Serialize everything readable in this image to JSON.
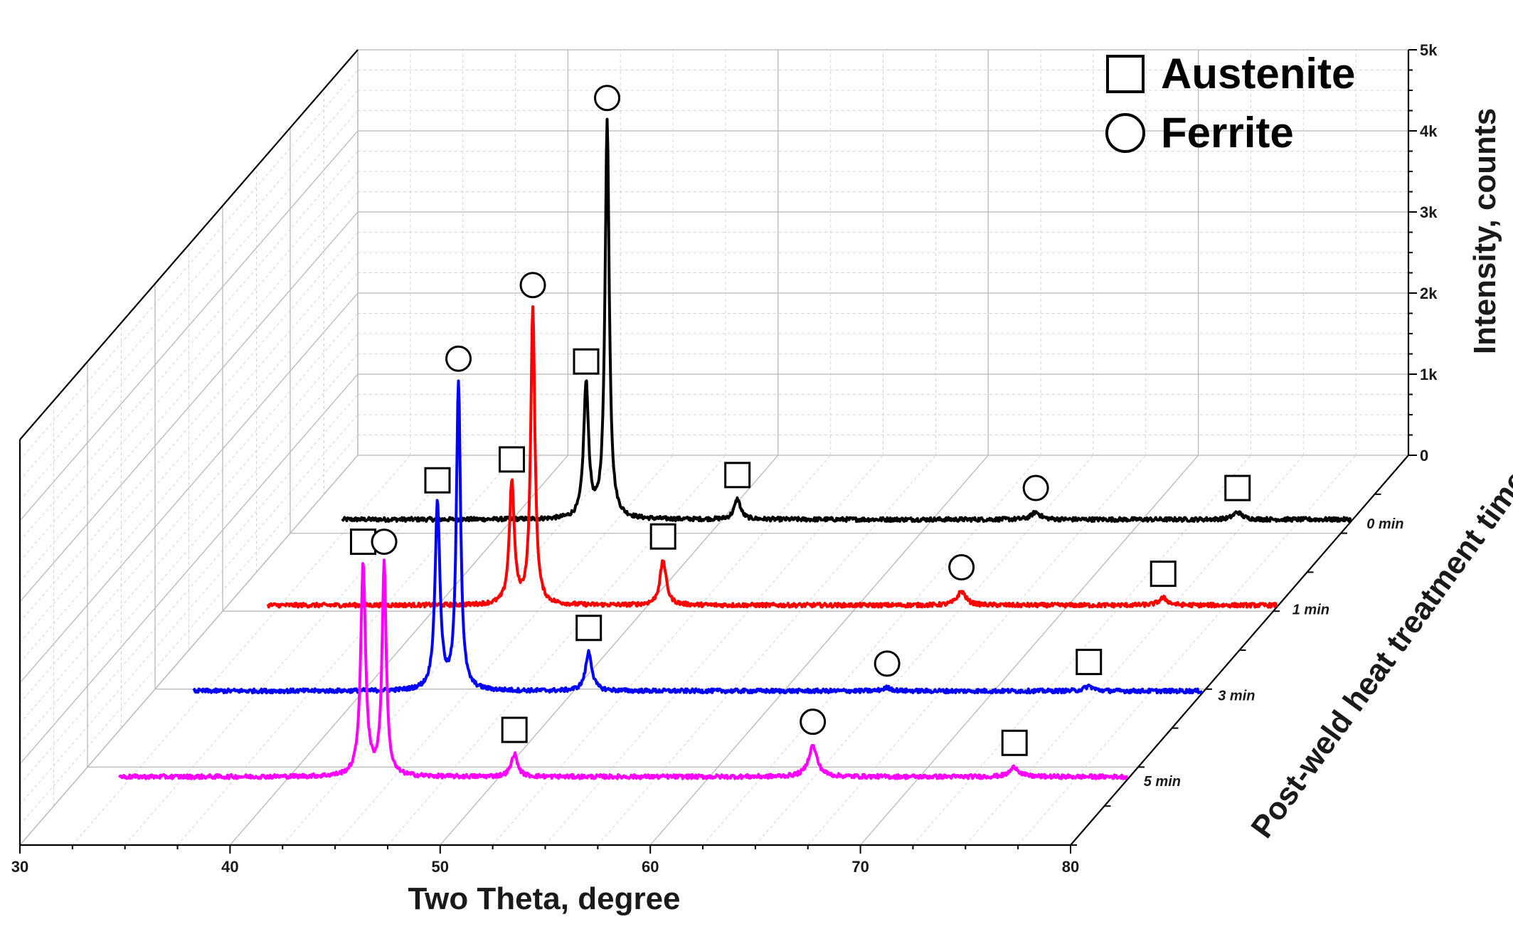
{
  "chart_data": {
    "type": "line",
    "xlabel": "Two Theta, degree",
    "ylabel": "Intensity, counts",
    "zlabel": "Post-weld heat treatment time",
    "xlim": [
      30,
      80
    ],
    "ylim": [
      0,
      5000
    ],
    "x_ticks": [
      "30",
      "40",
      "50",
      "60",
      "70",
      "80"
    ],
    "y_ticks": [
      "0",
      "1k",
      "2k",
      "3k",
      "4k",
      "5k"
    ],
    "grid": true,
    "legend": {
      "placement": "top-right",
      "entries": [
        {
          "marker": "square",
          "label": "Austenite"
        },
        {
          "marker": "circle",
          "label": "Ferrite"
        }
      ]
    },
    "series": [
      {
        "name": "0 min",
        "color": "#000000",
        "peaks": [
          {
            "x": 43.6,
            "y": 1650,
            "width": 0.14,
            "phase": "austenite"
          },
          {
            "x": 44.6,
            "y": 4900,
            "width": 0.12,
            "phase": "ferrite"
          },
          {
            "x": 50.8,
            "y": 250,
            "width": 0.18,
            "phase": "austenite"
          },
          {
            "x": 65.0,
            "y": 90,
            "width": 0.25,
            "phase": "ferrite"
          },
          {
            "x": 74.6,
            "y": 90,
            "width": 0.25,
            "phase": "austenite"
          }
        ]
      },
      {
        "name": "1 min",
        "color": "#ff0000",
        "peaks": [
          {
            "x": 43.6,
            "y": 1500,
            "width": 0.14,
            "phase": "austenite"
          },
          {
            "x": 44.6,
            "y": 3650,
            "width": 0.12,
            "phase": "ferrite"
          },
          {
            "x": 50.8,
            "y": 550,
            "width": 0.18,
            "phase": "austenite"
          },
          {
            "x": 65.0,
            "y": 170,
            "width": 0.25,
            "phase": "ferrite"
          },
          {
            "x": 74.6,
            "y": 90,
            "width": 0.25,
            "phase": "austenite"
          }
        ]
      },
      {
        "name": "3 min",
        "color": "#0000ff",
        "peaks": [
          {
            "x": 43.6,
            "y": 2300,
            "width": 0.14,
            "phase": "austenite"
          },
          {
            "x": 44.6,
            "y": 3800,
            "width": 0.12,
            "phase": "ferrite"
          },
          {
            "x": 50.8,
            "y": 480,
            "width": 0.18,
            "phase": "austenite"
          },
          {
            "x": 65.0,
            "y": 40,
            "width": 0.25,
            "phase": "ferrite"
          },
          {
            "x": 74.6,
            "y": 60,
            "width": 0.25,
            "phase": "austenite"
          }
        ]
      },
      {
        "name": "5 min",
        "color": "#ff00ff",
        "peaks": [
          {
            "x": 43.6,
            "y": 2600,
            "width": 0.14,
            "phase": "austenite"
          },
          {
            "x": 44.6,
            "y": 2600,
            "width": 0.12,
            "phase": "ferrite"
          },
          {
            "x": 50.8,
            "y": 280,
            "width": 0.18,
            "phase": "austenite"
          },
          {
            "x": 65.0,
            "y": 380,
            "width": 0.25,
            "phase": "ferrite"
          },
          {
            "x": 74.6,
            "y": 120,
            "width": 0.25,
            "phase": "austenite"
          }
        ]
      }
    ]
  }
}
